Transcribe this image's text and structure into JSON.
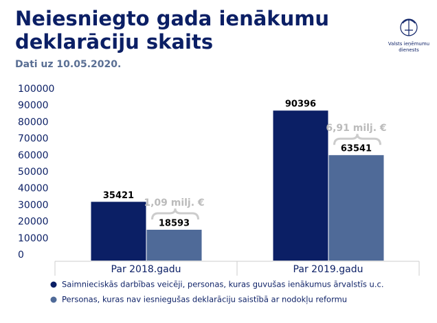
{
  "chart_data": {
    "type": "bar",
    "title": "Neiesniegto gada ienākumu deklarāciju skaits",
    "subtitle": "Dati uz 10.05.2020.",
    "logo_text": [
      "Valsts ieņēmumu",
      "dienests"
    ],
    "categories": [
      "Par 2018.gadu",
      "Par 2019.gadu"
    ],
    "series": [
      {
        "name": "Saimnieciskās darbības veicēji, personas, kuras guvušas ienākumus ārvalstīs u.c.",
        "color": "#0b1f65",
        "values": [
          35421,
          90396
        ]
      },
      {
        "name": "Personas, kuras nav iesniegušas deklarāciju saistībā ar nodokļu reformu",
        "color": "#4f6a98",
        "values": [
          18593,
          63541
        ]
      }
    ],
    "annotations": [
      "1,09 milj. €",
      "6,91 milj. €"
    ],
    "ylim": [
      0,
      100000
    ],
    "yticks": [
      0,
      10000,
      20000,
      30000,
      40000,
      50000,
      60000,
      70000,
      80000,
      90000,
      100000
    ],
    "grid": false
  }
}
